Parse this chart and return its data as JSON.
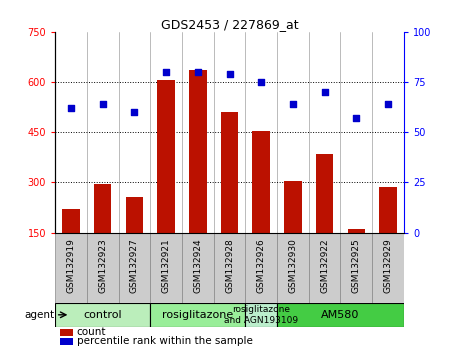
{
  "title": "GDS2453 / 227869_at",
  "samples": [
    "GSM132919",
    "GSM132923",
    "GSM132927",
    "GSM132921",
    "GSM132924",
    "GSM132928",
    "GSM132926",
    "GSM132930",
    "GSM132922",
    "GSM132925",
    "GSM132929"
  ],
  "counts": [
    220,
    295,
    255,
    605,
    635,
    510,
    455,
    305,
    385,
    160,
    285
  ],
  "percentiles": [
    62,
    64,
    60,
    80,
    80,
    79,
    75,
    64,
    70,
    57,
    64
  ],
  "ylim_left": [
    150,
    750
  ],
  "ylim_right": [
    0,
    100
  ],
  "yticks_left": [
    150,
    300,
    450,
    600,
    750
  ],
  "yticks_right": [
    0,
    25,
    50,
    75,
    100
  ],
  "groups": [
    {
      "label": "control",
      "start": 0,
      "end": 3,
      "color": "#bbeebb"
    },
    {
      "label": "rosiglitazone",
      "start": 3,
      "end": 6,
      "color": "#99ee99"
    },
    {
      "label": "rosiglitazone\nand AGN193109",
      "start": 6,
      "end": 7,
      "color": "#bbeecc"
    },
    {
      "label": "AM580",
      "start": 7,
      "end": 11,
      "color": "#44cc44"
    }
  ],
  "bar_color": "#bb1100",
  "dot_color": "#0000cc",
  "background_color": "#ffffff",
  "tick_cell_color": "#cccccc",
  "tick_cell_edge_color": "#888888"
}
